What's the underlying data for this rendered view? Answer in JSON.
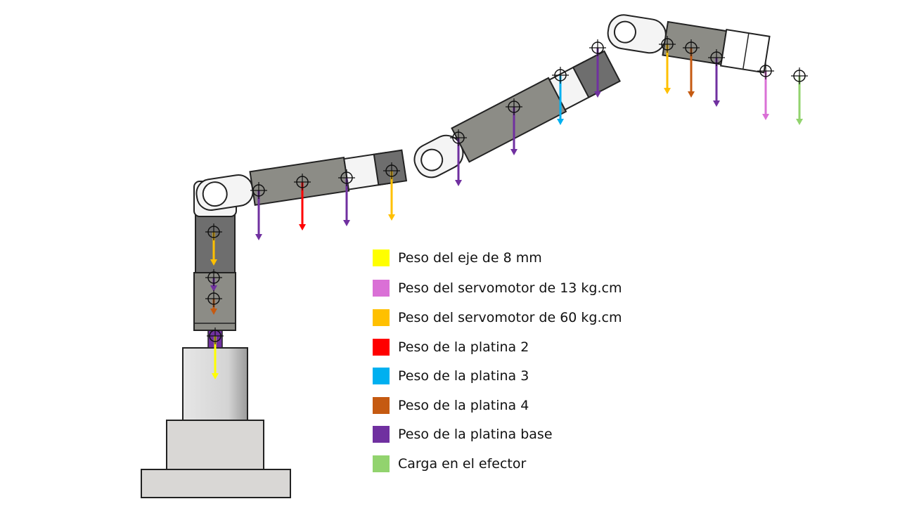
{
  "colors": {
    "eje": "#ffff00",
    "servo13": "#da70d6",
    "servo60": "#ffc000",
    "platina2": "#ff0000",
    "platina3": "#00b0f0",
    "platina4": "#c55a11",
    "platina_base": "#7030a0",
    "carga": "#92d36e",
    "plate_gray": "#8c8c86",
    "servo_dark": "#6e6e6e",
    "bracket_white": "#f4f4f4",
    "base_gray": "#d9d7d5"
  },
  "legend": [
    {
      "label": "Peso del eje de 8 mm",
      "color": "#ffff00"
    },
    {
      "label": "Peso del servomotor de 13 kg.cm",
      "color": "#da70d6"
    },
    {
      "label": "Peso del servomotor de 60 kg.cm",
      "color": "#ffc000"
    },
    {
      "label": "Peso de la platina 2",
      "color": "#ff0000"
    },
    {
      "label": "Peso de la platina 3",
      "color": "#00b0f0"
    },
    {
      "label": "Peso de la platina 4",
      "color": "#c55a11"
    },
    {
      "label": "Peso de la platina base",
      "color": "#7030a0"
    },
    {
      "label": "Carga en el efector",
      "color": "#92d36e"
    }
  ],
  "weights": [
    {
      "name": "eje",
      "color": "#ffff00"
    },
    {
      "name": "servo60-base",
      "color": "#ffc000"
    },
    {
      "name": "platina-base-1",
      "color": "#7030a0"
    },
    {
      "name": "platina4-base",
      "color": "#c55a11"
    },
    {
      "name": "platina-base-2",
      "color": "#7030a0"
    },
    {
      "name": "platina-base-3",
      "color": "#7030a0"
    },
    {
      "name": "platina2",
      "color": "#ff0000"
    },
    {
      "name": "platina-base-4",
      "color": "#7030a0"
    },
    {
      "name": "servo60-elbow",
      "color": "#ffc000"
    },
    {
      "name": "platina-base-5",
      "color": "#7030a0"
    },
    {
      "name": "platina3",
      "color": "#00b0f0"
    },
    {
      "name": "platina-base-6",
      "color": "#7030a0"
    },
    {
      "name": "servo60-wrist",
      "color": "#ffc000"
    },
    {
      "name": "platina-base-7",
      "color": "#7030a0"
    },
    {
      "name": "platina4-wrist",
      "color": "#c55a11"
    },
    {
      "name": "platina-base-8",
      "color": "#7030a0"
    },
    {
      "name": "servo13",
      "color": "#da70d6"
    },
    {
      "name": "carga",
      "color": "#92d36e"
    }
  ]
}
